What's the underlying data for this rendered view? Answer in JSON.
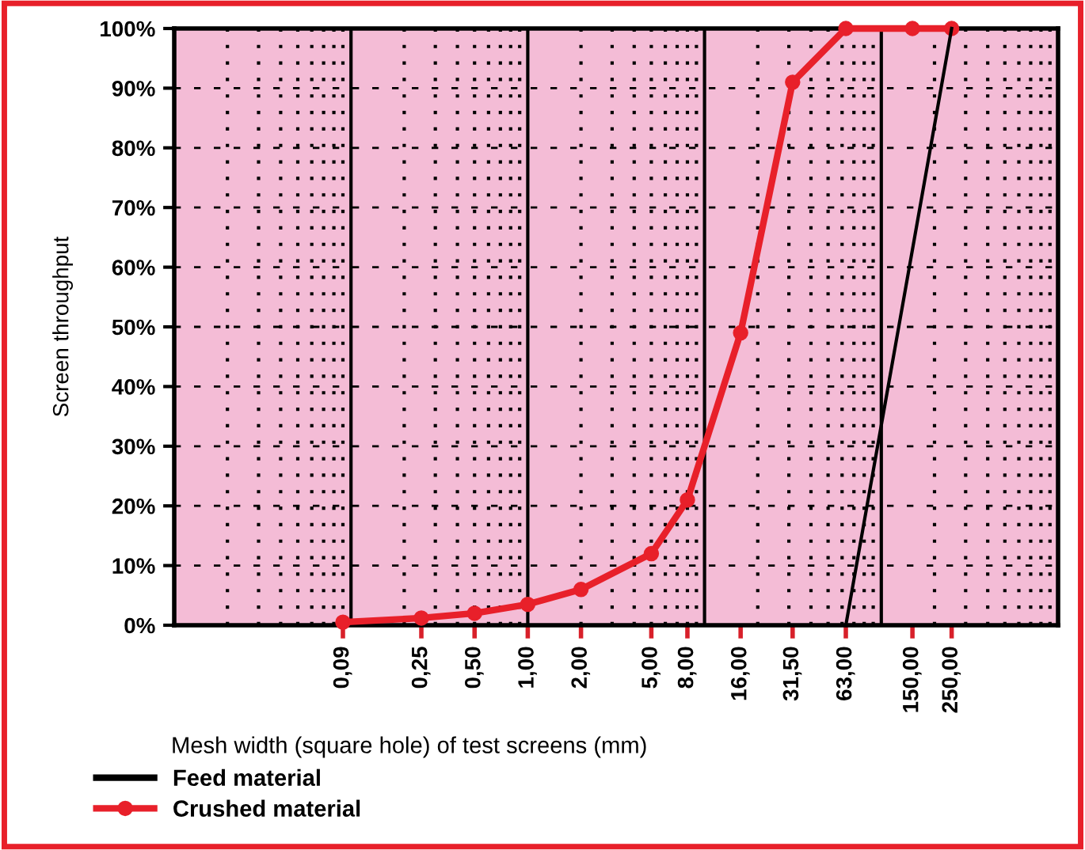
{
  "chart_data": {
    "type": "line",
    "xlabel": "Mesh width (square hole) of test screens (mm)",
    "ylabel": "Screen throughput",
    "log": "x",
    "xlim": [
      0.01,
      1000
    ],
    "xticks": [
      {
        "value": 0.09,
        "label": "0,09"
      },
      {
        "value": 0.25,
        "label": "0,25"
      },
      {
        "value": 0.5,
        "label": "0,50"
      },
      {
        "value": 1,
        "label": "1,00"
      },
      {
        "value": 2,
        "label": "2,00"
      },
      {
        "value": 5,
        "label": "5,00"
      },
      {
        "value": 8,
        "label": "8,00"
      },
      {
        "value": 16,
        "label": "16,00"
      },
      {
        "value": 31.5,
        "label": "31,50"
      },
      {
        "value": 63,
        "label": "63,00"
      },
      {
        "value": 150,
        "label": "150,00"
      },
      {
        "value": 250,
        "label": "250,00"
      }
    ],
    "ylim": [
      0,
      100
    ],
    "yticks": [
      {
        "value": 0,
        "label": "0%"
      },
      {
        "value": 10,
        "label": "10%"
      },
      {
        "value": 20,
        "label": "20%"
      },
      {
        "value": 30,
        "label": "30%"
      },
      {
        "value": 40,
        "label": "40%"
      },
      {
        "value": 50,
        "label": "50%"
      },
      {
        "value": 60,
        "label": "60%"
      },
      {
        "value": 70,
        "label": "70%"
      },
      {
        "value": 80,
        "label": "80%"
      },
      {
        "value": 90,
        "label": "90%"
      },
      {
        "value": 100,
        "label": "100%"
      }
    ],
    "grid": true,
    "legend": "bottom",
    "series": [
      {
        "name": "Feed material",
        "color": "#000000",
        "marker": "none",
        "x": [
          63,
          250
        ],
        "values": [
          0,
          100
        ]
      },
      {
        "name": "Crushed material",
        "color": "#e8202a",
        "marker": "circle",
        "x": [
          0.09,
          0.25,
          0.5,
          1,
          2,
          5,
          8,
          16,
          31.5,
          63,
          150,
          250
        ],
        "values": [
          0.5,
          1.2,
          2,
          3.5,
          6,
          12,
          21,
          49,
          91,
          100,
          100,
          100
        ]
      }
    ]
  }
}
